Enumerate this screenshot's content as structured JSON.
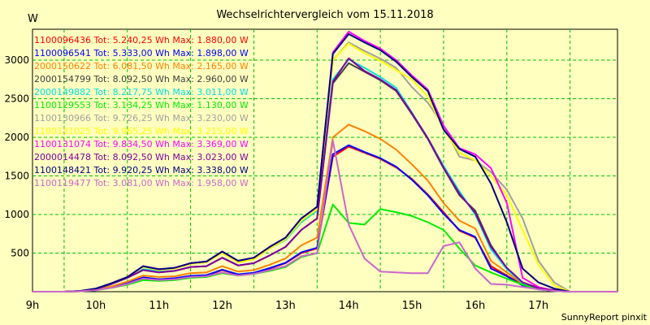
{
  "chart_data": {
    "type": "line",
    "title": "Wechselrichtervergleich vom 15.11.2018",
    "ylabel": "W",
    "footer": "SunnyReport pinxit",
    "x_range": [
      "08:30",
      "17:45"
    ],
    "ylim": [
      0,
      3400
    ],
    "yticks": [
      "500",
      "1000",
      "1500",
      "2000",
      "2500",
      "3000"
    ],
    "xticks": [
      "9h",
      "10h",
      "11h",
      "12h",
      "13h",
      "14h",
      "15h",
      "16h",
      "17h"
    ],
    "grid": true,
    "legend_position": "top-left",
    "x": [
      "08:30",
      "08:45",
      "09:00",
      "09:15",
      "09:30",
      "09:45",
      "10:00",
      "10:15",
      "10:30",
      "10:45",
      "11:00",
      "11:15",
      "11:30",
      "11:45",
      "12:00",
      "12:15",
      "12:30",
      "12:45",
      "13:00",
      "13:15",
      "13:30",
      "13:45",
      "14:00",
      "14:15",
      "14:30",
      "14:45",
      "15:00",
      "15:15",
      "15:30",
      "15:45",
      "16:00",
      "16:15",
      "16:30",
      "16:45",
      "17:00",
      "17:15",
      "17:30",
      "17:45"
    ],
    "series": [
      {
        "name": "1100096436 Tot: 5.240,25 Wh Max: 1.880,00 W",
        "color": "#ff0000",
        "values": [
          0,
          0,
          0,
          5,
          20,
          60,
          110,
          180,
          160,
          170,
          200,
          210,
          280,
          220,
          240,
          300,
          370,
          500,
          560,
          1750,
          1880,
          1800,
          1720,
          1610,
          1460,
          1260,
          1030,
          790,
          700,
          330,
          210,
          90,
          40,
          15,
          0,
          0,
          0,
          0
        ]
      },
      {
        "name": "1100096541 Tot: 5.333,00 Wh Max: 1.898,00 W",
        "color": "#0000ff",
        "values": [
          0,
          0,
          0,
          5,
          20,
          60,
          110,
          185,
          160,
          175,
          205,
          215,
          285,
          225,
          245,
          305,
          375,
          510,
          570,
          1780,
          1898,
          1810,
          1730,
          1620,
          1450,
          1250,
          1010,
          800,
          710,
          300,
          200,
          80,
          30,
          10,
          0,
          0,
          0,
          0
        ]
      },
      {
        "name": "2000150622 Tot: 6.081,50 Wh Max: 2.165,00 W",
        "color": "#ff8000",
        "values": [
          0,
          0,
          0,
          6,
          25,
          70,
          130,
          210,
          190,
          200,
          240,
          250,
          330,
          260,
          280,
          350,
          430,
          600,
          700,
          2000,
          2165,
          2080,
          1980,
          1840,
          1650,
          1440,
          1150,
          920,
          820,
          400,
          250,
          100,
          40,
          15,
          0,
          0,
          0,
          0
        ]
      },
      {
        "name": "2000154799 Tot: 8.092,50 Wh Max: 2.960,00 W",
        "color": "#404040",
        "values": [
          0,
          0,
          0,
          8,
          35,
          100,
          180,
          280,
          250,
          270,
          320,
          330,
          440,
          340,
          370,
          470,
          580,
          800,
          950,
          2700,
          2960,
          2850,
          2740,
          2600,
          2300,
          1980,
          1600,
          1250,
          1050,
          600,
          300,
          120,
          50,
          20,
          0,
          0,
          0,
          0
        ]
      },
      {
        "name": "2000149882 Tot: 8.217,75 Wh Max: 3.011,00 W",
        "color": "#00e0e0",
        "values": [
          0,
          0,
          0,
          8,
          35,
          100,
          185,
          290,
          270,
          300,
          370,
          390,
          520,
          400,
          440,
          560,
          670,
          900,
          1050,
          2750,
          3011,
          2900,
          2780,
          2640,
          2320,
          1990,
          1630,
          1300,
          1000,
          550,
          290,
          110,
          40,
          15,
          0,
          0,
          0,
          0
        ]
      },
      {
        "name": "1100129553 Tot: 3.134,25 Wh Max: 1.130,00 W",
        "color": "#00ee00",
        "values": [
          0,
          0,
          0,
          5,
          20,
          50,
          90,
          150,
          140,
          150,
          180,
          190,
          240,
          210,
          230,
          270,
          320,
          450,
          500,
          1130,
          890,
          870,
          1070,
          1030,
          980,
          900,
          800,
          560,
          340,
          250,
          170,
          90,
          35,
          10,
          0,
          0,
          0,
          0
        ]
      },
      {
        "name": "1100130966 Tot: 9.726,25 Wh Max: 3.230,00 W",
        "color": "#a0a0a0",
        "values": [
          0,
          0,
          0,
          10,
          40,
          110,
          190,
          320,
          280,
          300,
          360,
          380,
          500,
          380,
          420,
          560,
          680,
          920,
          1070,
          3000,
          3230,
          3120,
          3020,
          2900,
          2650,
          2450,
          2150,
          1750,
          1700,
          1550,
          1320,
          950,
          400,
          120,
          0,
          0,
          0,
          0
        ]
      },
      {
        "name": "1100131025 Tot: 9.965,25 Wh Max: 3.215,00 W",
        "color": "#ffff00",
        "values": [
          0,
          0,
          0,
          10,
          40,
          110,
          190,
          320,
          280,
          300,
          360,
          380,
          500,
          380,
          420,
          560,
          680,
          920,
          1070,
          3000,
          3215,
          3090,
          2990,
          2870,
          2750,
          2530,
          2100,
          1800,
          1700,
          1500,
          1250,
          800,
          350,
          80,
          0,
          0,
          0,
          0
        ]
      },
      {
        "name": "1100131074 Tot: 9.834,50 Wh Max: 3.369,00 W",
        "color": "#ff00ff",
        "values": [
          0,
          0,
          0,
          10,
          40,
          110,
          190,
          330,
          290,
          310,
          370,
          390,
          520,
          400,
          440,
          580,
          700,
          950,
          1100,
          3100,
          3369,
          3250,
          3150,
          3000,
          2800,
          2620,
          2150,
          1860,
          1780,
          1600,
          1150,
          180,
          60,
          15,
          0,
          0,
          0,
          0
        ]
      },
      {
        "name": "2000014478 Tot: 8.092,50 Wh Max: 3.023,00 W",
        "color": "#8000a0",
        "values": [
          0,
          0,
          0,
          8,
          35,
          100,
          180,
          280,
          250,
          270,
          320,
          330,
          440,
          340,
          370,
          470,
          580,
          800,
          950,
          2720,
          3023,
          2860,
          2750,
          2610,
          2310,
          1990,
          1610,
          1270,
          1020,
          580,
          310,
          120,
          45,
          15,
          0,
          0,
          0,
          0
        ]
      },
      {
        "name": "1100148421 Tot: 9.920,25 Wh Max: 3.338,00 W",
        "color": "#000080",
        "values": [
          0,
          0,
          0,
          10,
          40,
          110,
          190,
          330,
          290,
          310,
          370,
          390,
          520,
          400,
          440,
          580,
          700,
          950,
          1100,
          3080,
          3338,
          3230,
          3130,
          2980,
          2780,
          2600,
          2100,
          1850,
          1750,
          1400,
          900,
          300,
          120,
          40,
          0,
          0,
          0,
          0
        ]
      },
      {
        "name": "1100119477 Tot: 3.081,00 Wh Max: 1.958,00 W",
        "color": "#cc66cc",
        "values": [
          0,
          0,
          0,
          5,
          20,
          50,
          100,
          170,
          150,
          160,
          190,
          200,
          250,
          210,
          230,
          280,
          330,
          460,
          500,
          1958,
          870,
          430,
          260,
          250,
          240,
          240,
          590,
          640,
          300,
          100,
          90,
          60,
          30,
          10,
          0,
          0,
          0,
          0
        ]
      }
    ]
  }
}
